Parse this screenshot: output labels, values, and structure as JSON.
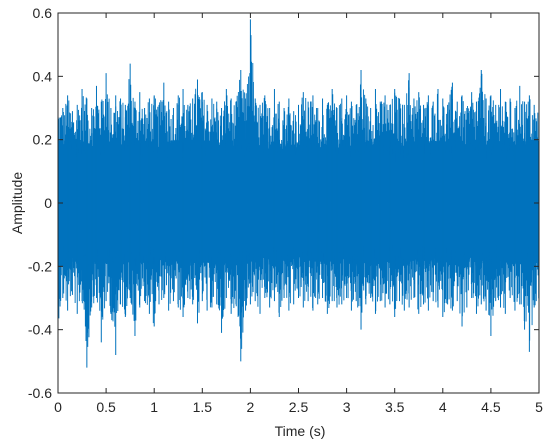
{
  "chart_data": {
    "type": "line",
    "title": "",
    "xlabel": "Time (s)",
    "ylabel": "Amplitude",
    "xlim": [
      0,
      5
    ],
    "ylim": [
      -0.6,
      0.6
    ],
    "x_ticks": [
      0,
      0.5,
      1,
      1.5,
      2,
      2.5,
      3,
      3.5,
      4,
      4.5,
      5
    ],
    "x_tick_labels": [
      "0",
      "0.5",
      "1",
      "1.5",
      "2",
      "2.5",
      "3",
      "3.5",
      "4",
      "4.5",
      "5"
    ],
    "y_ticks": [
      -0.6,
      -0.4,
      -0.2,
      0,
      0.2,
      0.4,
      0.6
    ],
    "y_tick_labels": [
      "-0.6",
      "-0.4",
      "-0.2",
      "0",
      "0.2",
      "0.4",
      "0.6"
    ],
    "grid": false,
    "line_color": "#0072BD",
    "series": [
      {
        "x": [
          0,
          0.05,
          0.1,
          0.15,
          0.2,
          0.25,
          0.3,
          0.35,
          0.4,
          0.45,
          0.5,
          0.55,
          0.6,
          0.65,
          0.7,
          0.75,
          0.8,
          0.85,
          0.9,
          0.95,
          1.0,
          1.05,
          1.1,
          1.15,
          1.2,
          1.25,
          1.3,
          1.35,
          1.4,
          1.45,
          1.5,
          1.55,
          1.6,
          1.65,
          1.7,
          1.75,
          1.8,
          1.85,
          1.9,
          1.95,
          2.0,
          2.05,
          2.1,
          2.15,
          2.2,
          2.25,
          2.3,
          2.35,
          2.4,
          2.45,
          2.5,
          2.55,
          2.6,
          2.65,
          2.7,
          2.75,
          2.8,
          2.85,
          2.9,
          2.95,
          3.0,
          3.05,
          3.1,
          3.15,
          3.2,
          3.25,
          3.3,
          3.35,
          3.4,
          3.45,
          3.5,
          3.55,
          3.6,
          3.65,
          3.7,
          3.75,
          3.8,
          3.85,
          3.9,
          3.95,
          4.0,
          4.05,
          4.1,
          4.15,
          4.2,
          4.25,
          4.3,
          4.35,
          4.4,
          4.45,
          4.5,
          4.55,
          4.6,
          4.65,
          4.7,
          4.75,
          4.8,
          4.85,
          4.9,
          4.95,
          5.0
        ],
        "upper": [
          0.32,
          0.3,
          0.34,
          0.29,
          0.31,
          0.36,
          0.33,
          0.3,
          0.37,
          0.32,
          0.41,
          0.3,
          0.34,
          0.33,
          0.31,
          0.44,
          0.32,
          0.35,
          0.3,
          0.33,
          0.34,
          0.31,
          0.38,
          0.32,
          0.3,
          0.34,
          0.36,
          0.31,
          0.33,
          0.39,
          0.35,
          0.31,
          0.33,
          0.32,
          0.3,
          0.36,
          0.33,
          0.32,
          0.42,
          0.33,
          0.58,
          0.33,
          0.31,
          0.34,
          0.3,
          0.36,
          0.32,
          0.3,
          0.33,
          0.29,
          0.31,
          0.35,
          0.32,
          0.34,
          0.3,
          0.33,
          0.31,
          0.36,
          0.3,
          0.33,
          0.34,
          0.32,
          0.31,
          0.42,
          0.33,
          0.3,
          0.36,
          0.32,
          0.34,
          0.31,
          0.36,
          0.33,
          0.31,
          0.41,
          0.33,
          0.35,
          0.31,
          0.34,
          0.32,
          0.36,
          0.33,
          0.31,
          0.38,
          0.32,
          0.34,
          0.3,
          0.35,
          0.32,
          0.42,
          0.33,
          0.34,
          0.31,
          0.36,
          0.32,
          0.33,
          0.3,
          0.37,
          0.32,
          0.34,
          0.31,
          0.3
        ],
        "lower": [
          -0.38,
          -0.3,
          -0.34,
          -0.29,
          -0.35,
          -0.31,
          -0.52,
          -0.33,
          -0.3,
          -0.44,
          -0.31,
          -0.35,
          -0.48,
          -0.32,
          -0.36,
          -0.3,
          -0.42,
          -0.33,
          -0.31,
          -0.35,
          -0.39,
          -0.32,
          -0.3,
          -0.34,
          -0.31,
          -0.33,
          -0.36,
          -0.3,
          -0.32,
          -0.38,
          -0.31,
          -0.34,
          -0.33,
          -0.32,
          -0.41,
          -0.3,
          -0.35,
          -0.32,
          -0.5,
          -0.34,
          -0.32,
          -0.31,
          -0.35,
          -0.3,
          -0.33,
          -0.31,
          -0.36,
          -0.3,
          -0.34,
          -0.32,
          -0.3,
          -0.33,
          -0.31,
          -0.34,
          -0.32,
          -0.3,
          -0.35,
          -0.31,
          -0.33,
          -0.32,
          -0.3,
          -0.34,
          -0.31,
          -0.4,
          -0.32,
          -0.3,
          -0.35,
          -0.31,
          -0.33,
          -0.32,
          -0.36,
          -0.31,
          -0.34,
          -0.33,
          -0.3,
          -0.35,
          -0.32,
          -0.34,
          -0.31,
          -0.33,
          -0.36,
          -0.32,
          -0.34,
          -0.31,
          -0.39,
          -0.33,
          -0.3,
          -0.35,
          -0.32,
          -0.34,
          -0.42,
          -0.31,
          -0.33,
          -0.35,
          -0.3,
          -0.34,
          -0.32,
          -0.4,
          -0.47,
          -0.33,
          -0.3
        ]
      }
    ]
  }
}
